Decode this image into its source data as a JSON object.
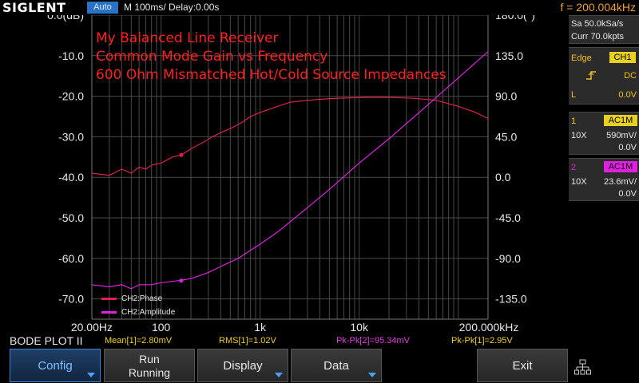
{
  "topbar": {
    "brand": "SIGLENT",
    "mode": "Auto",
    "timebase": "M 100ms/  Delay:0.00s",
    "frequency": "f = 200.004kHz"
  },
  "plot": {
    "title_lines": [
      "My Balanced Line Receiver",
      "Common Mode Gain vs Frequency",
      "600 Ohm Mismatched Hot/Cold Source Impedances"
    ],
    "left_ticks": [
      "0.0(dB)",
      "-10.0",
      "-20.0",
      "-30.0",
      "-40.0",
      "-50.0",
      "-60.0",
      "-70.0"
    ],
    "right_ticks": [
      "180.0(°)",
      "135.0",
      "90.0",
      "45.0",
      "0.0",
      "-45.0",
      "-90.0",
      "-135.0"
    ],
    "x_ticks": [
      "20.00Hz",
      "100",
      "1k",
      "10k",
      "200.000kHz"
    ],
    "legend": [
      {
        "label": "CH2:Phase",
        "color": "#e0204a"
      },
      {
        "label": "CH2:Amplitude",
        "color": "#e020e0"
      }
    ],
    "grid_color": "#4a4a4a"
  },
  "chart_data": {
    "type": "line",
    "title": "My Balanced Line Receiver / Common Mode Gain vs Frequency / 600 Ohm Mismatched Hot/Cold Source Impedances",
    "x_scale": "log",
    "xlim": [
      20,
      200000
    ],
    "ylim_left_db": [
      -75,
      0
    ],
    "ylim_right_deg": [
      -157.5,
      180
    ],
    "series": [
      {
        "name": "CH2:Phase",
        "color": "#e0204a",
        "axis": "left",
        "x": [
          20,
          30,
          40,
          50,
          60,
          70,
          80,
          100,
          130,
          160,
          200,
          260,
          330,
          400,
          500,
          650,
          800,
          1000,
          1500,
          2000,
          3000,
          5000,
          8000,
          12000,
          20000,
          35000,
          60000,
          100000,
          150000,
          200000
        ],
        "y": [
          -39,
          -39.5,
          -38,
          -39,
          -37.5,
          -38,
          -37,
          -36.5,
          -35,
          -34.5,
          -33,
          -31.5,
          -30,
          -29,
          -28,
          -26.5,
          -25,
          -24,
          -22.5,
          -21.5,
          -21,
          -20.6,
          -20.4,
          -20.3,
          -20.3,
          -20.5,
          -21,
          -22.5,
          -24,
          -25.5
        ]
      },
      {
        "name": "CH2:Amplitude",
        "color": "#e020e0",
        "axis": "left",
        "x": [
          20,
          30,
          40,
          50,
          60,
          80,
          100,
          150,
          200,
          300,
          400,
          600,
          800,
          1000,
          1500,
          2000,
          3000,
          5000,
          10000,
          20000,
          50000,
          100000,
          200000
        ],
        "y": [
          -66.5,
          -67,
          -66.5,
          -67.5,
          -66.5,
          -66.5,
          -66,
          -65.5,
          -65,
          -63.5,
          -62,
          -60,
          -58,
          -56.5,
          -53.5,
          -51,
          -47.5,
          -43,
          -36.5,
          -30.5,
          -22,
          -15.5,
          -9
        ]
      }
    ]
  },
  "rpanel": {
    "sa": "Sa 50.0kSa/s",
    "curr": "Curr 70.0kpts",
    "trigger_label": "Edge",
    "trigger_source": "CH1",
    "trigger_coupling": "DC",
    "trigger_level_label": "L",
    "trigger_level": "0.0V",
    "ch1": {
      "num": "1",
      "coupling": "AC1M",
      "probe": "10X",
      "scale": "590mV/",
      "offset": "0.0V"
    },
    "ch2": {
      "num": "2",
      "coupling": "AC1M",
      "probe": "10X",
      "scale": "23.6mV/",
      "offset": "0.0V"
    }
  },
  "status": {
    "mode": "BODE PLOT II",
    "mean": "Mean[1]=2.80mV",
    "rms": "RMS[1]=1.02V",
    "pkpk2": "Pk-Pk[2]=95.34mV",
    "pkpk1": "Pk-Pk[1]=2.95V"
  },
  "softkeys": {
    "config": "Config",
    "run_1": "Run",
    "run_2": "Running",
    "display": "Display",
    "data": "Data",
    "exit": "Exit"
  }
}
